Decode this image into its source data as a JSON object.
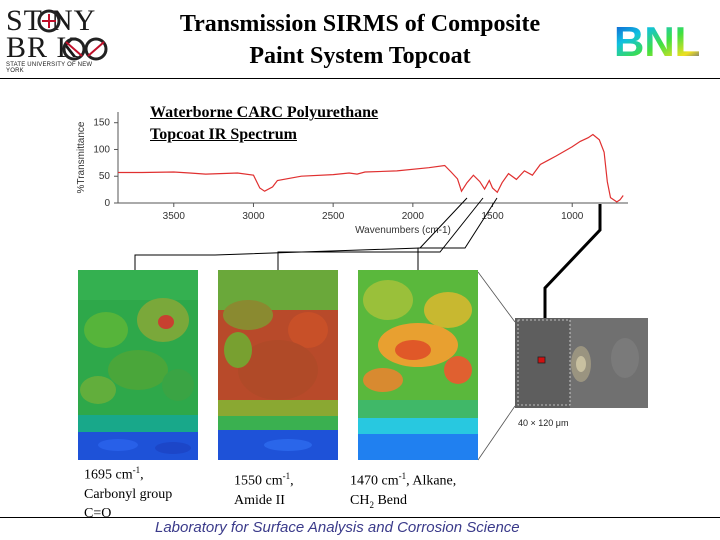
{
  "header": {
    "logo_left": {
      "line1": "ST NY",
      "line2": "BR  K",
      "tagline": "STATE UNIVERSITY OF NEW YORK"
    },
    "title_line1": "Transmission SIRMS of Composite",
    "title_line2": "Paint System Topcoat",
    "logo_right": {
      "text": "BNL"
    }
  },
  "spectrum": {
    "caption_line1": "Waterborne CARC Polyurethane",
    "caption_line2": "Topcoat IR Spectrum"
  },
  "chart_data": {
    "type": "line",
    "xlabel": "Wavenumbers (cm-1)",
    "ylabel": "%Transmittance",
    "x_ticks": [
      3500,
      3000,
      2500,
      2000,
      1500,
      1000
    ],
    "y_ticks": [
      0,
      50,
      100,
      150
    ],
    "xlim": [
      3850,
      650
    ],
    "ylim": [
      0,
      170
    ],
    "series": [
      {
        "color": "#e03030",
        "x": [
          3850,
          3700,
          3500,
          3400,
          3300,
          3100,
          3000,
          2960,
          2930,
          2880,
          2850,
          2700,
          2500,
          2400,
          2350,
          2300,
          2100,
          1900,
          1800,
          1760,
          1720,
          1695,
          1660,
          1620,
          1580,
          1550,
          1520,
          1500,
          1470,
          1440,
          1400,
          1350,
          1300,
          1250,
          1200,
          1150,
          1100,
          1000,
          950,
          900,
          870,
          830,
          800,
          780,
          760,
          720,
          700,
          680
        ],
        "y": [
          57,
          57,
          58,
          56,
          54,
          56,
          52,
          28,
          22,
          30,
          42,
          50,
          53,
          56,
          54,
          58,
          60,
          66,
          70,
          58,
          45,
          22,
          38,
          52,
          40,
          26,
          42,
          28,
          20,
          38,
          55,
          44,
          60,
          52,
          72,
          80,
          88,
          105,
          115,
          122,
          128,
          118,
          95,
          40,
          10,
          2,
          6,
          14
        ]
      }
    ]
  },
  "maps": {
    "scale_label": "40 × 120 μm",
    "peak1": {
      "value": "1695 cm",
      "exp": "-1",
      "suffix": ",",
      "line2": "Carbonyl group",
      "line3": "C=O"
    },
    "peak2": {
      "value": "1550 cm",
      "exp": "-1",
      "suffix": ",",
      "line2": "Amide II"
    },
    "peak3": {
      "value": "1470 cm",
      "exp": "-1",
      "suffix": ", Alkane,",
      "line2_pre": "CH",
      "line2_sub": "2",
      "line2_post": " Bend"
    }
  },
  "footer": {
    "text": "Laboratory for Surface Analysis and Corrosion Science"
  },
  "colors": {
    "spectrum": "#e03030",
    "footer": "#3a3a8a",
    "marker": "#d01010"
  }
}
